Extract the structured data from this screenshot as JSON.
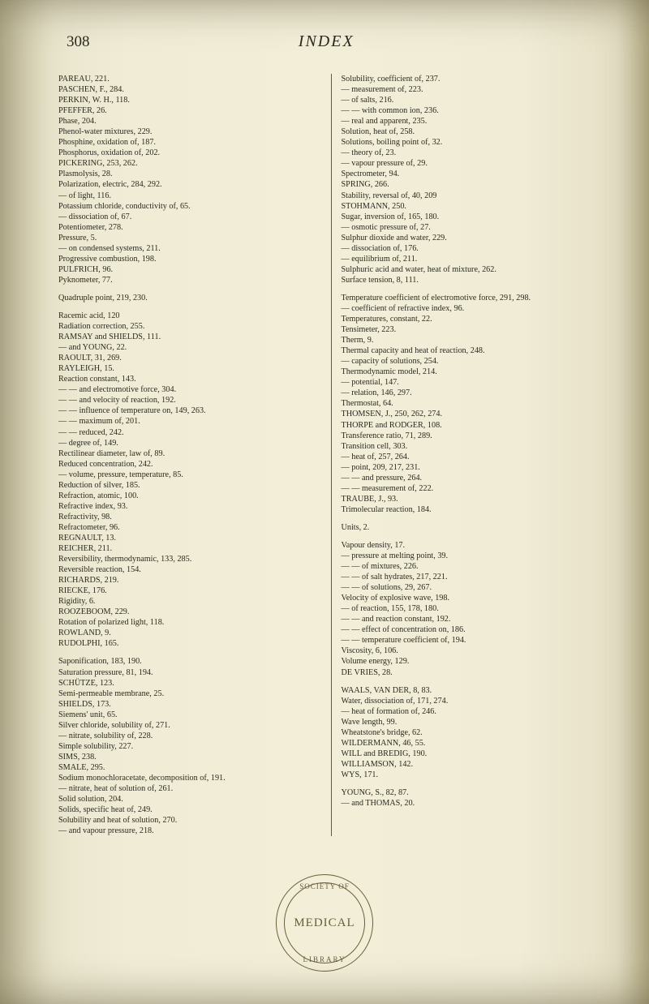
{
  "page_number": "308",
  "title": "INDEX",
  "stamp": {
    "top": "SOCIETY OF",
    "center": "MEDICAL",
    "bottom": "LIBRARY"
  },
  "left_column": [
    {
      "t": "PAREAU, 221."
    },
    {
      "t": "PASCHEN, F., 284."
    },
    {
      "t": "PERKIN, W. H., 118."
    },
    {
      "t": "PFEFFER, 26."
    },
    {
      "t": "Phase, 204."
    },
    {
      "t": "Phenol-water mixtures, 229."
    },
    {
      "t": "Phosphine, oxidation of, 187."
    },
    {
      "t": "Phosphorus, oxidation of, 202."
    },
    {
      "t": "PICKERING, 253, 262."
    },
    {
      "t": "Plasmolysis, 28."
    },
    {
      "t": "Polarization, electric, 284, 292."
    },
    {
      "t": "— of light, 116."
    },
    {
      "t": "Potassium chloride, conductivity of, 65."
    },
    {
      "t": "— dissociation of, 67."
    },
    {
      "t": "Potentiometer, 278."
    },
    {
      "t": "Pressure, 5."
    },
    {
      "t": "— on condensed systems, 211."
    },
    {
      "t": "Progressive combustion, 198."
    },
    {
      "t": "PULFRICH, 96."
    },
    {
      "t": "Pyknometer, 77."
    },
    {
      "gap": true
    },
    {
      "t": "Quadruple point, 219, 230."
    },
    {
      "gap": true
    },
    {
      "t": "Racemic acid, 120"
    },
    {
      "t": "Radiation correction, 255."
    },
    {
      "t": "RAMSAY and SHIELDS, 111."
    },
    {
      "t": "— and YOUNG, 22."
    },
    {
      "t": "RAOULT, 31, 269."
    },
    {
      "t": "RAYLEIGH, 15."
    },
    {
      "t": "Reaction constant, 143."
    },
    {
      "t": "— — and electromotive force, 304."
    },
    {
      "t": "— — and velocity of reaction, 192."
    },
    {
      "t": "— — influence of temperature on, 149, 263."
    },
    {
      "t": "— — maximum of, 201."
    },
    {
      "t": "— — reduced, 242."
    },
    {
      "t": "— degree of, 149."
    },
    {
      "t": "Rectilinear diameter, law of, 89."
    },
    {
      "t": "Reduced concentration, 242."
    },
    {
      "t": "— volume, pressure, temperature, 85."
    },
    {
      "t": "Reduction of silver, 185."
    },
    {
      "t": "Refraction, atomic, 100."
    },
    {
      "t": "Refractive index, 93."
    },
    {
      "t": "Refractivity, 98."
    },
    {
      "t": "Refractometer, 96."
    },
    {
      "t": "REGNAULT, 13."
    },
    {
      "t": "REICHER, 211."
    },
    {
      "t": "Reversibility, thermodynamic, 133, 285."
    },
    {
      "t": "Reversible reaction, 154."
    },
    {
      "t": "RICHARDS, 219."
    },
    {
      "t": "RIECKE, 176."
    },
    {
      "t": "Rigidity, 6."
    },
    {
      "t": "ROOZEBOOM, 229."
    },
    {
      "t": "Rotation of polarized light, 118."
    },
    {
      "t": "ROWLAND, 9."
    },
    {
      "t": "RUDOLPHI, 165."
    },
    {
      "gap": true
    },
    {
      "t": "Saponification, 183, 190."
    },
    {
      "t": "Saturation pressure, 81, 194."
    },
    {
      "t": "SCHÜTZE, 123."
    },
    {
      "t": "Semi-permeable membrane, 25."
    },
    {
      "t": "SHIELDS, 173."
    },
    {
      "t": "Siemens' unit, 65."
    },
    {
      "t": "Silver chloride, solubility of, 271."
    },
    {
      "t": "— nitrate, solubility of, 228."
    },
    {
      "t": "Simple solubility, 227."
    },
    {
      "t": "SIMS, 238."
    },
    {
      "t": "SMALE, 295."
    },
    {
      "t": "Sodium monochloracetate, decomposition of, 191."
    },
    {
      "t": "— nitrate, heat of solution of, 261."
    },
    {
      "t": "Solid solution, 204."
    },
    {
      "t": "Solids, specific heat of, 249."
    },
    {
      "t": "Solubility and heat of solution, 270."
    },
    {
      "t": "— and vapour pressure, 218."
    }
  ],
  "right_column": [
    {
      "t": "Solubility, coefficient of, 237."
    },
    {
      "t": "— measurement of, 223."
    },
    {
      "t": "— of salts, 216."
    },
    {
      "t": "— — with common ion, 236."
    },
    {
      "t": "— real and apparent, 235."
    },
    {
      "t": "Solution, heat of, 258."
    },
    {
      "t": "Solutions, boiling point of, 32."
    },
    {
      "t": "— theory of, 23."
    },
    {
      "t": "— vapour pressure of, 29."
    },
    {
      "t": "Spectrometer, 94."
    },
    {
      "t": "SPRING, 266."
    },
    {
      "t": "Stability, reversal of, 40, 209"
    },
    {
      "t": "STOHMANN, 250."
    },
    {
      "t": "Sugar, inversion of, 165, 180."
    },
    {
      "t": "— osmotic pressure of, 27."
    },
    {
      "t": "Sulphur dioxide and water, 229."
    },
    {
      "t": "— dissociation of, 176."
    },
    {
      "t": "— equilibrium of, 211."
    },
    {
      "t": "Sulphuric acid and water, heat of mixture, 262."
    },
    {
      "t": "Surface tension, 8, 111."
    },
    {
      "gap": true
    },
    {
      "t": "Temperature coefficient of electromotive force, 291, 298."
    },
    {
      "t": "— coefficient of refractive index, 96."
    },
    {
      "t": "Temperatures, constant, 22."
    },
    {
      "t": "Tensimeter, 223."
    },
    {
      "t": "Therm, 9."
    },
    {
      "t": "Thermal capacity and heat of reaction, 248."
    },
    {
      "t": "— capacity of solutions, 254."
    },
    {
      "t": "Thermodynamic model, 214."
    },
    {
      "t": "— potential, 147."
    },
    {
      "t": "— relation, 146, 297."
    },
    {
      "t": "Thermostat, 64."
    },
    {
      "t": "THOMSEN, J., 250, 262, 274."
    },
    {
      "t": "THORPE and RODGER, 108."
    },
    {
      "t": "Transference ratio, 71, 289."
    },
    {
      "t": "Transition cell, 303."
    },
    {
      "t": "— heat of, 257, 264."
    },
    {
      "t": "— point, 209, 217, 231."
    },
    {
      "t": "— — and pressure, 264."
    },
    {
      "t": "— — measurement of, 222."
    },
    {
      "t": "TRAUBE, J., 93."
    },
    {
      "t": "Trimolecular reaction, 184."
    },
    {
      "gap": true
    },
    {
      "t": "Units, 2."
    },
    {
      "gap": true
    },
    {
      "t": "Vapour density, 17."
    },
    {
      "t": "— pressure at melting point, 39."
    },
    {
      "t": "— — of mixtures, 226."
    },
    {
      "t": "— — of salt hydrates, 217, 221."
    },
    {
      "t": "— — of solutions, 29, 267."
    },
    {
      "t": "Velocity of explosive wave, 198."
    },
    {
      "t": "— of reaction, 155, 178, 180."
    },
    {
      "t": "— — and reaction constant, 192."
    },
    {
      "t": "— — effect of concentration on, 186."
    },
    {
      "t": "— — temperature coefficient of, 194."
    },
    {
      "t": "Viscosity, 6, 106."
    },
    {
      "t": "Volume energy, 129."
    },
    {
      "t": "DE VRIES, 28."
    },
    {
      "gap": true
    },
    {
      "t": "WAALS, VAN DER, 8, 83."
    },
    {
      "t": "Water, dissociation of, 171, 274."
    },
    {
      "t": "— heat of formation of, 246."
    },
    {
      "t": "Wave length, 99."
    },
    {
      "t": "Wheatstone's bridge, 62."
    },
    {
      "t": "WILDERMANN, 46, 55."
    },
    {
      "t": "WILL and BREDIG, 190."
    },
    {
      "t": "WILLIAMSON, 142."
    },
    {
      "t": "WYS, 171."
    },
    {
      "gap": true
    },
    {
      "t": "YOUNG, S., 82, 87."
    },
    {
      "t": "— and THOMAS, 20."
    }
  ]
}
